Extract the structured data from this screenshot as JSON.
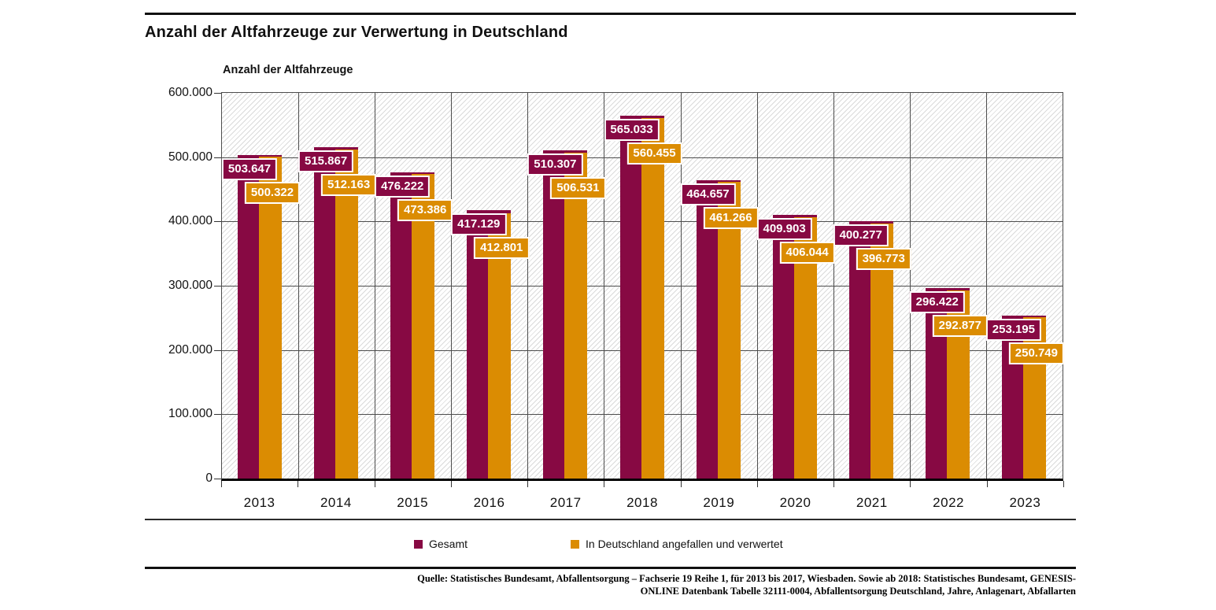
{
  "header": {
    "title": "Anzahl der Altfahrzeuge zur Verwertung in Deutschland"
  },
  "chart_data": {
    "type": "bar",
    "title": "Anzahl der Altfahrzeuge zur Verwertung in Deutschland",
    "axis_heading": "Anzahl der Altfahrzeuge",
    "categories": [
      "2013",
      "2014",
      "2015",
      "2016",
      "2017",
      "2018",
      "2019",
      "2020",
      "2021",
      "2022",
      "2023"
    ],
    "series": [
      {
        "name": "Gesamt",
        "color": "#870943",
        "values": [
          503647,
          515867,
          476222,
          417129,
          510307,
          565033,
          464657,
          409903,
          400277,
          296422,
          253195
        ]
      },
      {
        "name": "In Deutschland angefallen und  verwertet",
        "color": "#db8c02",
        "values": [
          500322,
          512163,
          473386,
          412801,
          506531,
          560455,
          461266,
          406044,
          396773,
          292877,
          250749
        ]
      }
    ],
    "ylim": [
      0,
      600000
    ],
    "ytick_step": 100000,
    "ytick_labels": [
      "0",
      "100.000",
      "200.000",
      "300.000",
      "400.000",
      "500.000",
      "600.000"
    ],
    "grid": true,
    "background_hatch": true,
    "legend_position": "bottom",
    "value_labels_shown": true
  },
  "footer": {
    "source_line1": "Quelle: Statistisches Bundesamt, Abfallentsorgung – Fachserie 19 Reihe 1, für 2013 bis 2017, Wiesbaden. Sowie ab 2018: Statistisches Bundesamt, GENESIS-",
    "source_line2": "ONLINE Datenbank Tabelle 32111-0004, Abfallentsorgung Deutschland, Jahre, Anlagenart, Abfallarten"
  }
}
